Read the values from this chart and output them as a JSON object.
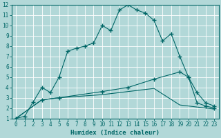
{
  "xlabel": "Humidex (Indice chaleur)",
  "background_color": "#b2d8d8",
  "grid_color": "#ffffff",
  "line_color": "#006666",
  "xlim": [
    -0.5,
    23.5
  ],
  "ylim": [
    1,
    12
  ],
  "xticks": [
    0,
    1,
    2,
    3,
    4,
    5,
    6,
    7,
    8,
    9,
    10,
    11,
    12,
    13,
    14,
    15,
    16,
    17,
    18,
    19,
    20,
    21,
    22,
    23
  ],
  "yticks": [
    1,
    2,
    3,
    4,
    5,
    6,
    7,
    8,
    9,
    10,
    11,
    12
  ],
  "line1_x": [
    0,
    1,
    2,
    3,
    4,
    5,
    6,
    7,
    8,
    9,
    10,
    11,
    12,
    13,
    14,
    15,
    16,
    17,
    18,
    19,
    20,
    21,
    22,
    23
  ],
  "line1_y": [
    1.0,
    1.2,
    2.6,
    4.0,
    3.5,
    5.0,
    7.5,
    7.8,
    8.0,
    8.3,
    10.0,
    9.5,
    11.5,
    12.0,
    11.5,
    11.2,
    10.5,
    8.5,
    9.2,
    7.0,
    5.0,
    3.5,
    2.5,
    2.2
  ],
  "line2_x": [
    0,
    3,
    5,
    10,
    13,
    16,
    19,
    20,
    21,
    22,
    23
  ],
  "line2_y": [
    1.0,
    2.8,
    3.0,
    3.6,
    4.0,
    4.8,
    5.5,
    5.0,
    2.5,
    2.2,
    2.0
  ],
  "line3_x": [
    0,
    3,
    5,
    10,
    13,
    16,
    19,
    20,
    21,
    22,
    23
  ],
  "line3_y": [
    1.0,
    2.8,
    3.0,
    3.3,
    3.6,
    3.9,
    2.3,
    2.2,
    2.1,
    2.0,
    1.9
  ],
  "marker_x1": [
    0,
    1,
    2,
    3,
    4,
    5,
    6,
    7,
    8,
    9,
    10,
    11,
    12,
    13,
    14,
    15,
    16,
    17,
    18,
    19,
    20,
    21,
    22,
    23
  ],
  "marker_y1": [
    1.0,
    1.2,
    2.6,
    4.0,
    3.5,
    5.0,
    7.5,
    7.8,
    8.0,
    8.3,
    10.0,
    9.5,
    11.5,
    12.0,
    11.5,
    11.2,
    10.5,
    8.5,
    9.2,
    7.0,
    5.0,
    3.5,
    2.5,
    2.2
  ],
  "marker_x2": [
    0,
    3,
    5,
    10,
    13,
    16,
    19,
    20,
    21,
    22,
    23
  ],
  "marker_y2": [
    1.0,
    2.8,
    3.0,
    3.6,
    4.0,
    4.8,
    5.5,
    5.0,
    2.5,
    2.2,
    2.0
  ]
}
